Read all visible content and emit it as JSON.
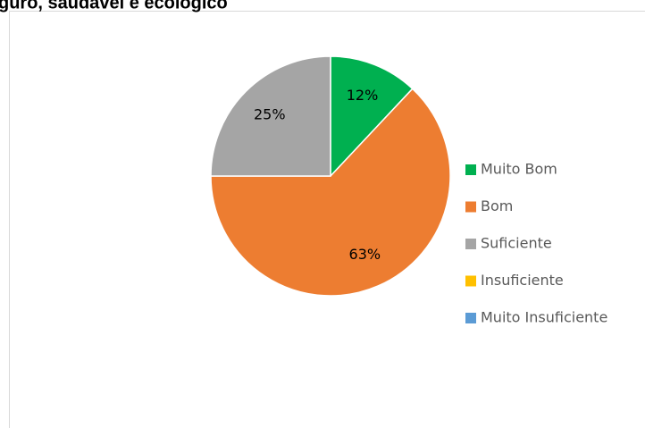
{
  "chart_data": {
    "type": "pie",
    "title": "guro, saudável e ecológico",
    "categories": [
      "Muito Bom",
      "Bom",
      "Suficiente",
      "Insuficiente",
      "Muito Insuficiente"
    ],
    "values": [
      12,
      63,
      25,
      0,
      0
    ],
    "value_labels": [
      "12%",
      "63%",
      "25%",
      null,
      null
    ],
    "colors": [
      "#00b050",
      "#ed7d31",
      "#a5a5a5",
      "#ffc000",
      "#5b9bd5"
    ],
    "legend": "right"
  }
}
